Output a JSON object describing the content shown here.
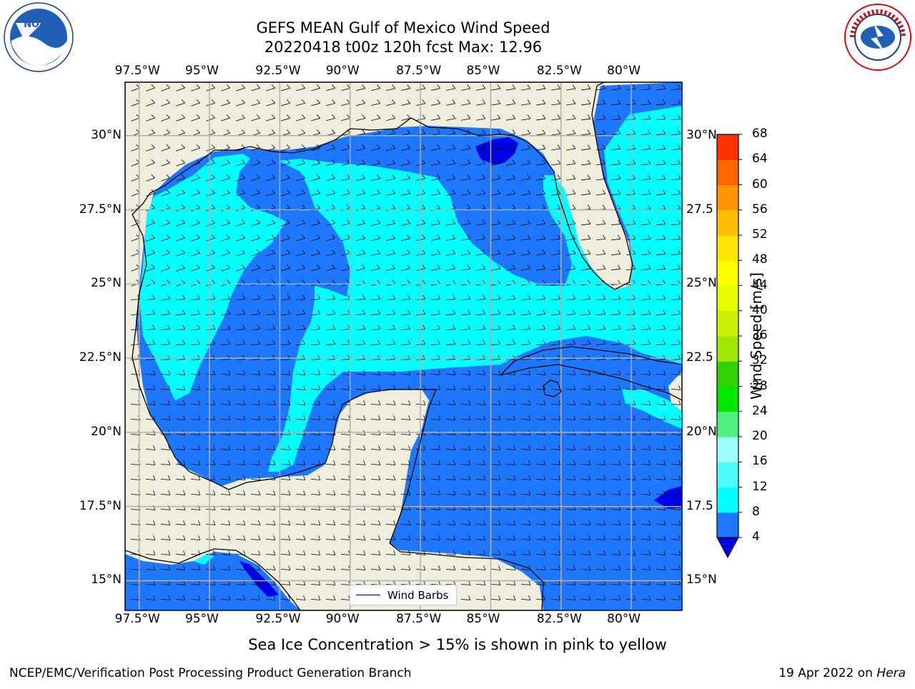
{
  "title": {
    "line1": "GEFS MEAN Gulf of Mexico Wind Speed",
    "line2": "20220418 t00z 120h fcst   Max: 12.96"
  },
  "logos": {
    "noaa_text": "NOAA",
    "nws_text": "NATIONAL WEATHER SERVICE"
  },
  "map": {
    "lon_ticks": [
      "97.5°W",
      "95°W",
      "92.5°W",
      "90°W",
      "87.5°W",
      "85°W",
      "82.5°W",
      "80°W"
    ],
    "lon_values": [
      -97.5,
      -95,
      -92.5,
      -90,
      -87.5,
      -85,
      -82.5,
      -80
    ],
    "lat_ticks_left": [
      "30°N",
      "27.5°N",
      "25°N",
      "22.5°N",
      "20°N",
      "17.5°N",
      "15°N"
    ],
    "lat_ticks_right": [
      "30°N",
      "27.5",
      "25°N",
      "22.5",
      "20°N",
      "17.5",
      "15°N"
    ],
    "lat_values": [
      30,
      27.5,
      25,
      22.5,
      20,
      17.5,
      15
    ],
    "extent": {
      "lon_min": -98,
      "lon_max": -78.2,
      "lat_min": 14,
      "lat_max": 31.8
    },
    "colors": {
      "land": "#efeddc",
      "level_4_8": "#1e78ff",
      "level_8_12": "#00ffff",
      "level_below_4": "#0000e6",
      "grid": "#b0b0b0",
      "coast": "#000000"
    },
    "legend_label": "Wind Barbs"
  },
  "colorbar": {
    "label": "Wind Speed [m/s]",
    "ticks": [
      "4",
      "8",
      "12",
      "16",
      "20",
      "24",
      "28",
      "32",
      "36",
      "40",
      "44",
      "48",
      "52",
      "56",
      "60",
      "64",
      "68"
    ],
    "colors": [
      "#1e78ff",
      "#00ffff",
      "#4dfcff",
      "#a0fffa",
      "#50f080",
      "#00e600",
      "#32d200",
      "#a0e600",
      "#c8f000",
      "#e6ff00",
      "#ffff00",
      "#ffe600",
      "#ffbe00",
      "#ff9600",
      "#ff6400",
      "#ff3200",
      "#ff0000"
    ],
    "extend_color": "#0000e6"
  },
  "note": "Sea Ice Concentration > 15% is shown in pink to yellow",
  "footer": {
    "left": "NCEP/EMC/Verification Post Processing Product Generation Branch",
    "right_date": "19 Apr 2022 on ",
    "right_host": "Hera"
  }
}
